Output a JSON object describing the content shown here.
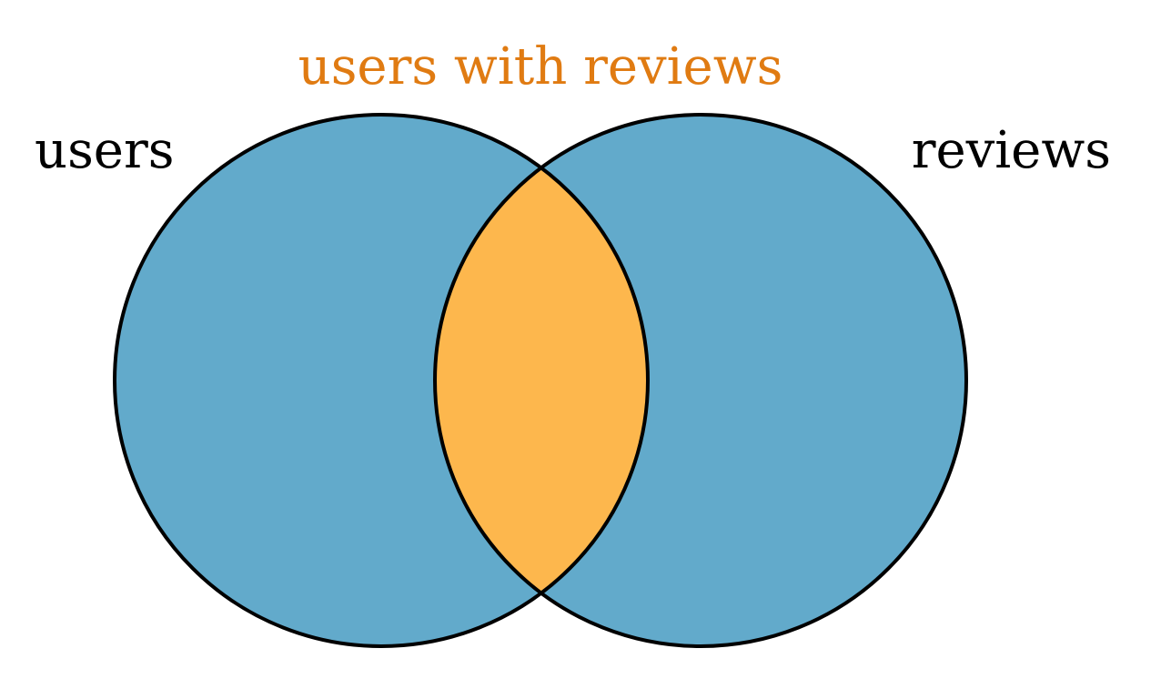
{
  "diagram": {
    "sets": [
      {
        "id": "left",
        "label": "users"
      },
      {
        "id": "right",
        "label": "reviews"
      }
    ],
    "intersection_label": "users with reviews",
    "colors": {
      "set_fill": "#62aacb",
      "intersection_fill": "#fdb74d",
      "outline": "#000000",
      "set_label": "#000000",
      "intersection_label": "#e07b12"
    }
  }
}
